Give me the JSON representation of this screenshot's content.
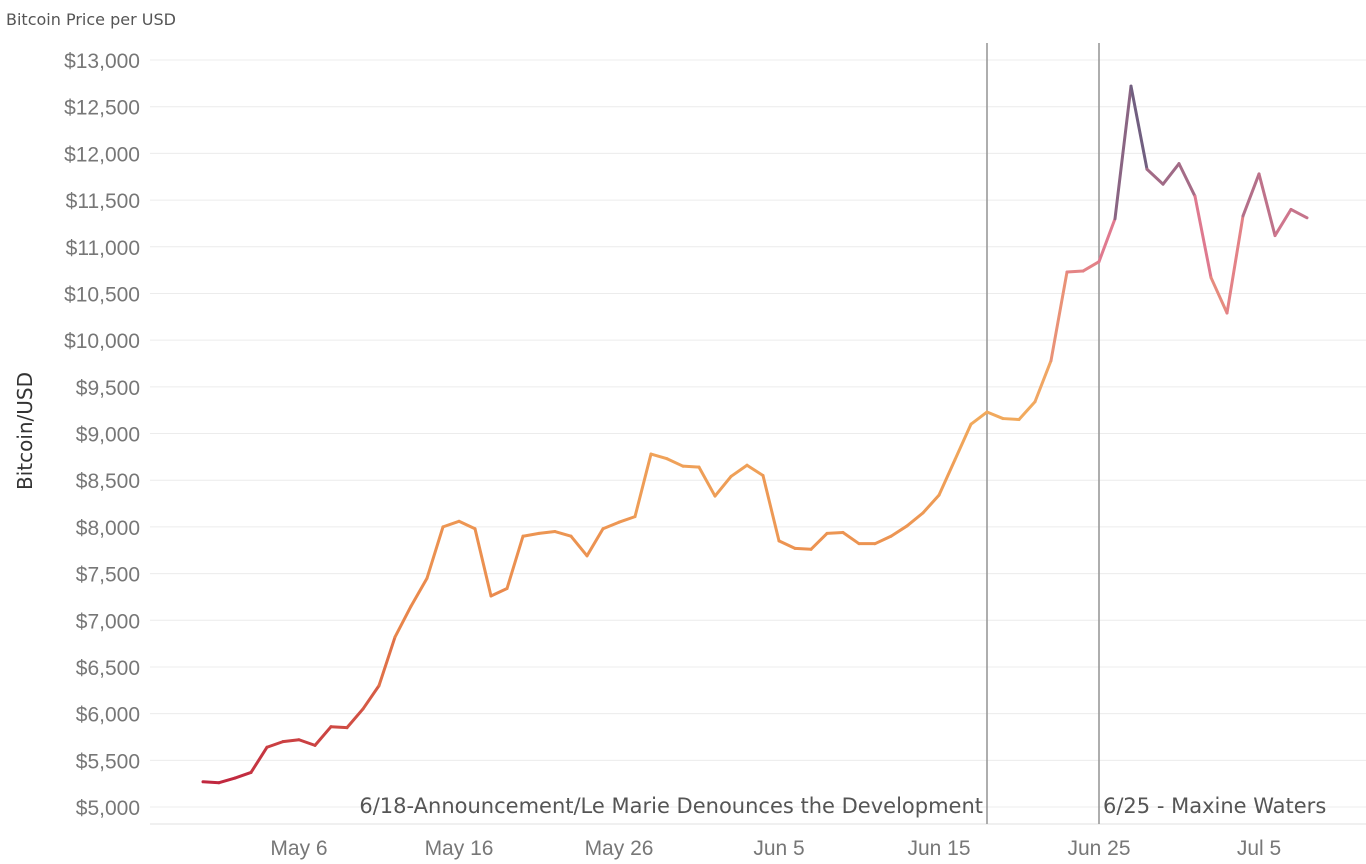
{
  "chart_data": {
    "type": "line",
    "title": "Bitcoin Price per USD",
    "ylabel": "Bitcoin/USD",
    "xlabel": "",
    "ylim": [
      5000,
      13000
    ],
    "yticks": [
      5000,
      5500,
      6000,
      6500,
      7000,
      7500,
      8000,
      8500,
      9000,
      9500,
      10000,
      10500,
      11000,
      11500,
      12000,
      12500,
      13000
    ],
    "ytick_labels": [
      "$5,000",
      "$5,500",
      "$6,000",
      "$6,500",
      "$7,000",
      "$7,500",
      "$8,000",
      "$8,500",
      "$9,000",
      "$9,500",
      "$10,000",
      "$10,500",
      "$11,000",
      "$11,500",
      "$12,000",
      "$12,500",
      "$13,000"
    ],
    "xlim": [
      "2019-04-28",
      "2019-07-11"
    ],
    "xticks": [
      "2019-05-06",
      "2019-05-16",
      "2019-05-26",
      "2019-06-05",
      "2019-06-15",
      "2019-06-25",
      "2019-07-05"
    ],
    "xtick_labels": [
      "May 6",
      "May 16",
      "May 26",
      "Jun 5",
      "Jun 15",
      "Jun 25",
      "Jul 5"
    ],
    "grid": true,
    "color_scale": [
      "#c0283f",
      "#e8844a",
      "#f2ac5e",
      "#e07a8f",
      "#48557a"
    ],
    "x": [
      "2019-04-30",
      "2019-05-01",
      "2019-05-02",
      "2019-05-03",
      "2019-05-04",
      "2019-05-05",
      "2019-05-06",
      "2019-05-07",
      "2019-05-08",
      "2019-05-09",
      "2019-05-10",
      "2019-05-11",
      "2019-05-12",
      "2019-05-13",
      "2019-05-14",
      "2019-05-15",
      "2019-05-16",
      "2019-05-17",
      "2019-05-18",
      "2019-05-19",
      "2019-05-20",
      "2019-05-21",
      "2019-05-22",
      "2019-05-23",
      "2019-05-24",
      "2019-05-25",
      "2019-05-26",
      "2019-05-27",
      "2019-05-28",
      "2019-05-29",
      "2019-05-30",
      "2019-05-31",
      "2019-06-01",
      "2019-06-02",
      "2019-06-03",
      "2019-06-04",
      "2019-06-05",
      "2019-06-06",
      "2019-06-07",
      "2019-06-08",
      "2019-06-09",
      "2019-06-10",
      "2019-06-11",
      "2019-06-12",
      "2019-06-13",
      "2019-06-14",
      "2019-06-15",
      "2019-06-16",
      "2019-06-17",
      "2019-06-18",
      "2019-06-19",
      "2019-06-20",
      "2019-06-21",
      "2019-06-22",
      "2019-06-23",
      "2019-06-24",
      "2019-06-25",
      "2019-06-26",
      "2019-06-27",
      "2019-06-28",
      "2019-06-29",
      "2019-06-30",
      "2019-07-01",
      "2019-07-02",
      "2019-07-03",
      "2019-07-04",
      "2019-07-05",
      "2019-07-06",
      "2019-07-07",
      "2019-07-08"
    ],
    "values": [
      5270,
      5260,
      5310,
      5370,
      5640,
      5700,
      5720,
      5660,
      5860,
      5850,
      6050,
      6300,
      6820,
      7150,
      7450,
      8000,
      8060,
      7980,
      7260,
      7340,
      7900,
      7930,
      7950,
      7900,
      7690,
      7980,
      8050,
      8110,
      8780,
      8730,
      8650,
      8640,
      8330,
      8540,
      8660,
      8550,
      7850,
      7770,
      7760,
      7930,
      7940,
      7820,
      7820,
      7900,
      8010,
      8150,
      8340,
      8720,
      9100,
      9230,
      9160,
      9150,
      9340,
      9780,
      10730,
      10740,
      10840,
      11300,
      12720,
      11830,
      11670,
      11890,
      11540,
      10670,
      10290,
      11330,
      11780,
      11120,
      11400,
      11310
    ],
    "annotations": [
      {
        "date": "2019-06-18",
        "label": "6/18-Announcement/Le Marie Denounces the Development",
        "text_anchor": "end"
      },
      {
        "date": "2019-06-25",
        "label": "6/25 - Maxine Waters",
        "text_anchor": "start"
      }
    ]
  }
}
